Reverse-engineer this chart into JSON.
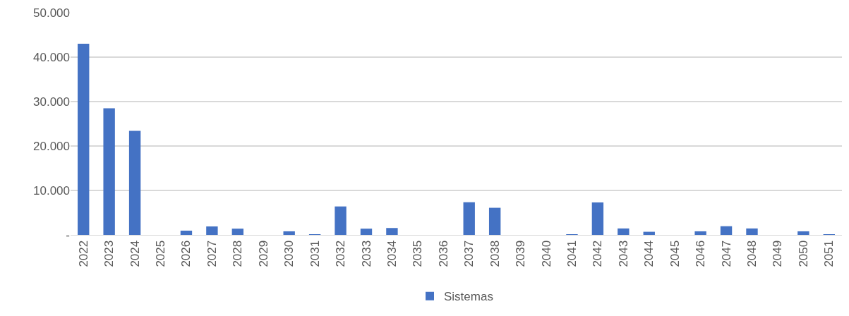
{
  "chart_data": {
    "type": "bar",
    "categories": [
      "2022",
      "2023",
      "2024",
      "2025",
      "2026",
      "2027",
      "2028",
      "2029",
      "2030",
      "2031",
      "2032",
      "2033",
      "2034",
      "2035",
      "2036",
      "2037",
      "2038",
      "2039",
      "2040",
      "2041",
      "2042",
      "2043",
      "2044",
      "2045",
      "2046",
      "2047",
      "2048",
      "2049",
      "2050",
      "2051"
    ],
    "series": [
      {
        "name": "Sistemas",
        "color": "#4472c4",
        "values": [
          43000,
          28500,
          23400,
          0,
          950,
          1900,
          1400,
          0,
          800,
          150,
          6400,
          1400,
          1550,
          0,
          0,
          7350,
          6100,
          0,
          0,
          150,
          7300,
          1450,
          700,
          0,
          800,
          1950,
          1450,
          0,
          800,
          150
        ]
      }
    ],
    "ylim": [
      0,
      50000
    ],
    "yticks": [
      {
        "value": 0,
        "label": "-"
      },
      {
        "value": 10000,
        "label": "10.000"
      },
      {
        "value": 20000,
        "label": "20.000"
      },
      {
        "value": 30000,
        "label": "30.000"
      },
      {
        "value": 40000,
        "label": "40.000"
      },
      {
        "value": 50000,
        "label": "50.000"
      }
    ],
    "grid": "y",
    "legend": "bottom"
  }
}
